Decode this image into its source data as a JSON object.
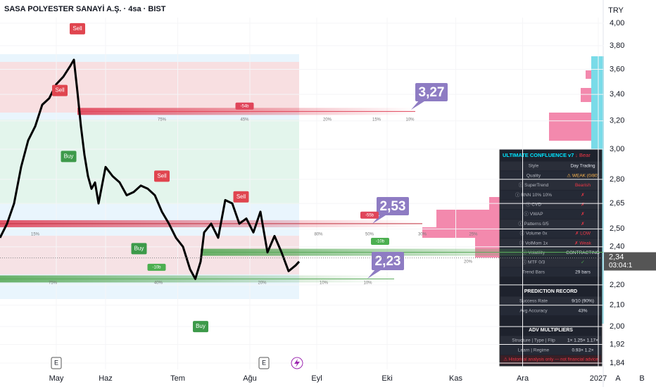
{
  "chart_data": {
    "type": "line",
    "title": "SASA POLYESTER SANAYİ A.Ş. · 4sa · BIST",
    "currency": "TRY",
    "axis_buttons": [
      "A",
      "B"
    ],
    "log_scale": true,
    "grid": true,
    "color": "#000000",
    "ylim": [
      1.84,
      4.0
    ],
    "yticks": [
      {
        "value": 4.0,
        "label": "4,00"
      },
      {
        "value": 3.8,
        "label": "3,80"
      },
      {
        "value": 3.6,
        "label": "3,60"
      },
      {
        "value": 3.4,
        "label": "3,40"
      },
      {
        "value": 3.2,
        "label": "3,20"
      },
      {
        "value": 3.0,
        "label": "3,00"
      },
      {
        "value": 2.8,
        "label": "2,80"
      },
      {
        "value": 2.65,
        "label": "2,65"
      },
      {
        "value": 2.5,
        "label": "2,50"
      },
      {
        "value": 2.4,
        "label": "2,40"
      },
      {
        "value": 2.2,
        "label": "2,20"
      },
      {
        "value": 2.1,
        "label": "2,10"
      },
      {
        "value": 2.0,
        "label": "2,00"
      },
      {
        "value": 1.92,
        "label": "1,92"
      },
      {
        "value": 1.84,
        "label": "1,84"
      }
    ],
    "xlim": [
      0,
      343
    ],
    "xticks": [
      {
        "value": 32,
        "label": "May"
      },
      {
        "value": 60,
        "label": "Haz"
      },
      {
        "value": 101,
        "label": "Tem"
      },
      {
        "value": 142,
        "label": "Ağu"
      },
      {
        "value": 180,
        "label": "Eyl"
      },
      {
        "value": 220,
        "label": "Eki"
      },
      {
        "value": 259,
        "label": "Kas"
      },
      {
        "value": 297,
        "label": "Ara"
      },
      {
        "value": 340,
        "label": "2027"
      }
    ],
    "x": [
      0,
      4,
      8,
      12,
      16,
      20,
      24,
      28,
      32,
      36,
      40,
      42,
      44,
      46,
      48,
      50,
      52,
      54,
      56,
      60,
      64,
      68,
      72,
      76,
      80,
      84,
      88,
      92,
      96,
      100,
      104,
      108,
      111,
      114,
      116,
      120,
      124,
      128,
      132,
      136,
      140,
      144,
      148,
      152,
      156,
      160,
      164,
      168,
      170
    ],
    "values": [
      2.45,
      2.53,
      2.65,
      2.88,
      3.06,
      3.16,
      3.32,
      3.37,
      3.48,
      3.54,
      3.63,
      3.68,
      3.42,
      3.16,
      2.96,
      2.82,
      2.74,
      2.78,
      2.65,
      2.88,
      2.82,
      2.78,
      2.7,
      2.72,
      2.76,
      2.74,
      2.7,
      2.6,
      2.53,
      2.45,
      2.4,
      2.28,
      2.23,
      2.32,
      2.48,
      2.53,
      2.45,
      2.67,
      2.65,
      2.53,
      2.56,
      2.48,
      2.6,
      2.37,
      2.46,
      2.37,
      2.27,
      2.3,
      2.32
    ],
    "last_price": {
      "value": 2.34,
      "label": "2,34"
    },
    "countdown": "03:04:1",
    "levels": [
      {
        "value": 3.27,
        "label": "3,27",
        "color": "#e0455a"
      },
      {
        "value": 2.53,
        "label": "2,53",
        "color": "#c0303f"
      },
      {
        "value": 2.37,
        "color": "#5aaa5a"
      },
      {
        "value": 2.23,
        "label": "2,23",
        "color": "#5aaa5a"
      }
    ],
    "signals": [
      {
        "label": "Sell",
        "x": 44,
        "price": 3.95
      },
      {
        "label": "Sell",
        "x": 34,
        "price": 3.43
      },
      {
        "label": "Buy",
        "x": 39,
        "price": 2.95
      },
      {
        "label": "Sell",
        "x": 92,
        "price": 2.82
      },
      {
        "label": "Sell",
        "x": 137,
        "price": 2.69
      },
      {
        "label": "Buy",
        "x": 79,
        "price": 2.39
      },
      {
        "label": "Buy",
        "x": 114,
        "price": 2.0
      }
    ],
    "pct_labels": [
      {
        "text": "75%",
        "x": 92,
        "price": 3.21
      },
      {
        "text": "45%",
        "x": 139,
        "price": 3.21
      },
      {
        "text": "20%",
        "x": 186,
        "price": 3.21
      },
      {
        "text": "15%",
        "x": 214,
        "price": 3.21
      },
      {
        "text": "10%",
        "x": 233,
        "price": 3.21
      },
      {
        "text": "15%",
        "x": 20,
        "price": 2.47
      },
      {
        "text": "80%",
        "x": 181,
        "price": 2.47
      },
      {
        "text": "50%",
        "x": 210,
        "price": 2.47
      },
      {
        "text": "30%",
        "x": 240,
        "price": 2.47
      },
      {
        "text": "25%",
        "x": 269,
        "price": 2.47
      },
      {
        "text": "20%",
        "x": 266,
        "price": 2.32
      },
      {
        "text": "75%",
        "x": 30,
        "price": 2.21
      },
      {
        "text": "40%",
        "x": 90,
        "price": 2.21
      },
      {
        "text": "20%",
        "x": 149,
        "price": 2.21
      },
      {
        "text": "10%",
        "x": 184,
        "price": 2.21
      },
      {
        "text": "10%",
        "x": 209,
        "price": 2.21
      }
    ],
    "tags": [
      {
        "text": "-54b",
        "x": 139,
        "price": 3.31,
        "color": "#e0455a"
      },
      {
        "text": "-55b",
        "x": 210,
        "price": 2.58,
        "color": "#e0455a"
      },
      {
        "text": "-10b",
        "x": 216,
        "price": 2.43,
        "color": "#4caf50"
      },
      {
        "text": "-10b",
        "x": 89,
        "price": 2.29,
        "color": "#4caf50"
      }
    ],
    "events": [
      {
        "label": "E",
        "x": 32
      },
      {
        "label": "E",
        "x": 150
      }
    ]
  },
  "panel": {
    "title": "ULTIMATE CONFLUENCE v7",
    "signal": "↓ Bear",
    "rows": [
      [
        "Style",
        "Day Trading"
      ],
      [
        "Quality",
        "⚠ WEAK (0/80)"
      ],
      [
        "ⓘ SuperTrend",
        "Bearish"
      ],
      [
        "ⓘ RNN 10% 10%",
        "✗"
      ],
      [
        "ⓘ CVD",
        "✗"
      ],
      [
        "ⓘ VWAP",
        "✗"
      ],
      [
        "ⓘ Patterns 0/5",
        "✗"
      ],
      [
        "ⓘ Volume 0x",
        "✗ LOW"
      ],
      [
        "ⓘ VolMom 1x",
        "✗ Weak"
      ],
      [
        "ⓘ Volatility",
        "CONTRACTING"
      ],
      [
        "ⓘ MTF 0/3",
        "✓"
      ],
      [
        "Trend Bars",
        "29 bars"
      ]
    ],
    "record_title": "PREDICTION RECORD",
    "record_rows": [
      [
        "Success Rate",
        "9/10 (90%)"
      ],
      [
        "Avg Accuracy",
        "43%"
      ]
    ],
    "mult_title": "ADV MULTIPLIERS",
    "mult_rows": [
      [
        "Structure | Type | Flip",
        "1× 1.25× 1.17×"
      ],
      [
        "Learn | Regime",
        "0.93× 1.2×"
      ]
    ],
    "footer": "⚠ Historical analysis only — not financial advice"
  }
}
